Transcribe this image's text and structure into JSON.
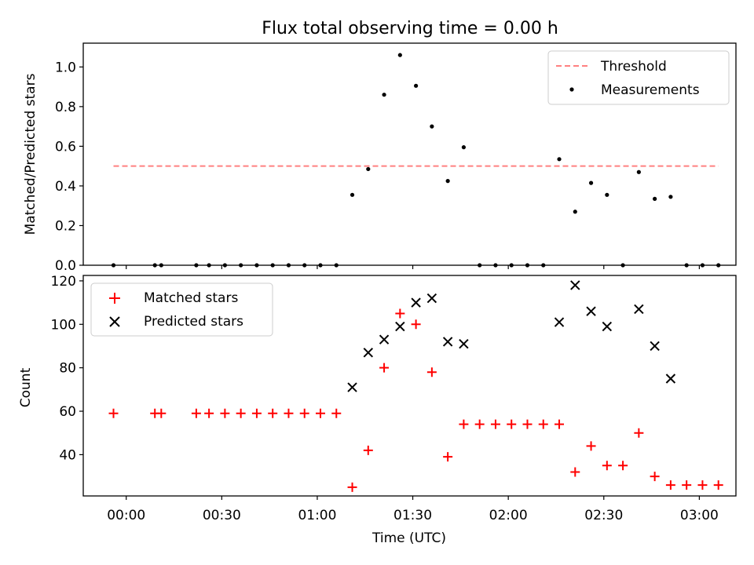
{
  "chart_data": {
    "title": "Flux total observing time = 0.00 h",
    "xlabel": "Time (UTC)",
    "x_tick_labels": [
      "00:00",
      "00:30",
      "01:00",
      "01:30",
      "02:00",
      "02:30",
      "03:00"
    ],
    "x_tick_minutes": [
      0,
      30,
      60,
      90,
      120,
      150,
      180
    ],
    "xlim_minutes": [
      -13.5,
      191.5
    ],
    "panels": [
      {
        "type": "scatter",
        "ylabel": "Matched/Predicted stars",
        "ylim": [
          0,
          1.12
        ],
        "yticks": [
          0.0,
          0.2,
          0.4,
          0.6,
          0.8,
          1.0
        ],
        "legend_position": "top-right",
        "series": [
          {
            "name": "Threshold",
            "kind": "line",
            "style": "dashed",
            "color": "#ff8080",
            "points": [
              [
                -4,
                0.5
              ],
              [
                186,
                0.5
              ]
            ]
          },
          {
            "name": "Measurements",
            "kind": "points",
            "marker": "dot",
            "color": "#000000",
            "points": [
              [
                -4,
                0
              ],
              [
                9,
                0
              ],
              [
                11,
                0
              ],
              [
                22,
                0
              ],
              [
                26,
                0
              ],
              [
                31,
                0
              ],
              [
                36,
                0
              ],
              [
                41,
                0
              ],
              [
                46,
                0
              ],
              [
                51,
                0
              ],
              [
                56,
                0
              ],
              [
                61,
                0
              ],
              [
                66,
                0
              ],
              [
                71,
                0.355
              ],
              [
                76,
                0.485
              ],
              [
                81,
                0.86
              ],
              [
                86,
                1.06
              ],
              [
                91,
                0.905
              ],
              [
                96,
                0.7
              ],
              [
                101,
                0.425
              ],
              [
                106,
                0.595
              ],
              [
                111,
                0
              ],
              [
                116,
                0
              ],
              [
                121,
                0
              ],
              [
                126,
                0
              ],
              [
                131,
                0
              ],
              [
                136,
                0.535
              ],
              [
                141,
                0.27
              ],
              [
                146,
                0.415
              ],
              [
                151,
                0.355
              ],
              [
                156,
                0
              ],
              [
                161,
                0.47
              ],
              [
                166,
                0.335
              ],
              [
                171,
                0.345
              ],
              [
                176,
                0
              ],
              [
                181,
                0
              ],
              [
                186,
                0
              ]
            ]
          }
        ]
      },
      {
        "type": "scatter",
        "ylabel": "Count",
        "ylim": [
          21,
          122.5
        ],
        "yticks": [
          40,
          60,
          80,
          100,
          120
        ],
        "legend_position": "top-left",
        "series": [
          {
            "name": "Matched stars",
            "kind": "points",
            "marker": "plus",
            "color": "#ff0000",
            "points": [
              [
                -4,
                59
              ],
              [
                9,
                59
              ],
              [
                11,
                59
              ],
              [
                22,
                59
              ],
              [
                26,
                59
              ],
              [
                31,
                59
              ],
              [
                36,
                59
              ],
              [
                41,
                59
              ],
              [
                46,
                59
              ],
              [
                51,
                59
              ],
              [
                56,
                59
              ],
              [
                61,
                59
              ],
              [
                66,
                59
              ],
              [
                71,
                25
              ],
              [
                76,
                42
              ],
              [
                81,
                80
              ],
              [
                86,
                105
              ],
              [
                91,
                100
              ],
              [
                96,
                78
              ],
              [
                101,
                39
              ],
              [
                106,
                54
              ],
              [
                111,
                54
              ],
              [
                116,
                54
              ],
              [
                121,
                54
              ],
              [
                126,
                54
              ],
              [
                131,
                54
              ],
              [
                136,
                54
              ],
              [
                141,
                32
              ],
              [
                146,
                44
              ],
              [
                151,
                35
              ],
              [
                156,
                35
              ],
              [
                161,
                50
              ],
              [
                166,
                30
              ],
              [
                171,
                26
              ],
              [
                176,
                26
              ],
              [
                181,
                26
              ],
              [
                186,
                26
              ]
            ]
          },
          {
            "name": "Predicted stars",
            "kind": "points",
            "marker": "x",
            "color": "#000000",
            "points": [
              [
                71,
                71
              ],
              [
                76,
                87
              ],
              [
                81,
                93
              ],
              [
                86,
                99
              ],
              [
                91,
                110
              ],
              [
                96,
                112
              ],
              [
                101,
                92
              ],
              [
                106,
                91
              ],
              [
                136,
                101
              ],
              [
                141,
                118
              ],
              [
                146,
                106
              ],
              [
                151,
                99
              ],
              [
                161,
                107
              ],
              [
                166,
                90
              ],
              [
                171,
                75
              ]
            ]
          }
        ]
      }
    ]
  }
}
